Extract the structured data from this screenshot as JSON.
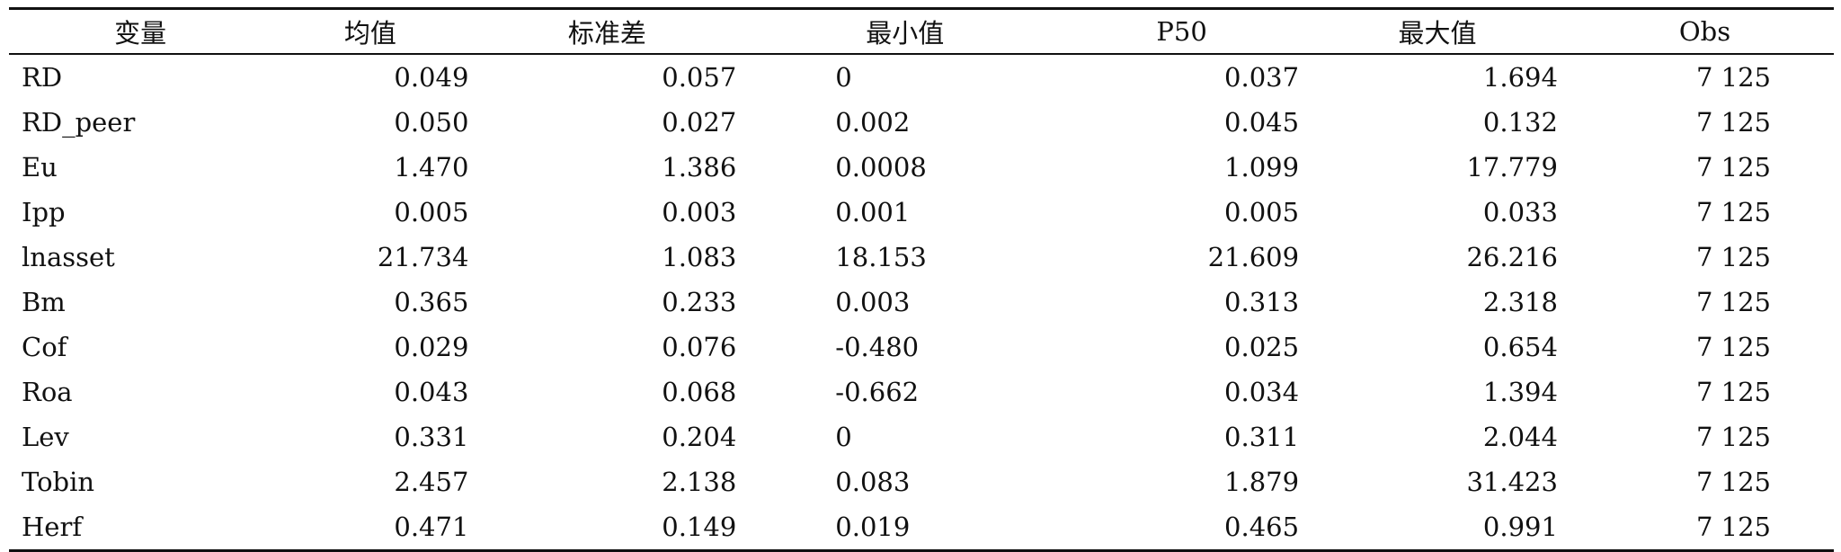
{
  "table": {
    "headers": [
      "变量",
      "均值",
      "标准差",
      "最小值",
      "P50",
      "最大值",
      "Obs"
    ],
    "rows": [
      [
        "RD",
        "0.049",
        "0.057",
        "0",
        "0.037",
        "1.694",
        "7 125"
      ],
      [
        "RD_peer",
        "0.050",
        "0.027",
        "0.002",
        "0.045",
        "0.132",
        "7 125"
      ],
      [
        "Eu",
        "1.470",
        "1.386",
        "0.0008",
        "1.099",
        "17.779",
        "7 125"
      ],
      [
        "Ipp",
        "0.005",
        "0.003",
        "0.001",
        "0.005",
        "0.033",
        "7 125"
      ],
      [
        "lnasset",
        "21.734",
        "1.083",
        "18.153",
        "21.609",
        "26.216",
        "7 125"
      ],
      [
        "Bm",
        "0.365",
        "0.233",
        "0.003",
        "0.313",
        "2.318",
        "7 125"
      ],
      [
        "Cof",
        "0.029",
        "0.076",
        "-0.480",
        "0.025",
        "0.654",
        "7 125"
      ],
      [
        "Roa",
        "0.043",
        "0.068",
        "-0.662",
        "0.034",
        "1.394",
        "7 125"
      ],
      [
        "Lev",
        "0.331",
        "0.204",
        "0",
        "0.311",
        "2.044",
        "7 125"
      ],
      [
        "Tobin",
        "2.457",
        "2.138",
        "0.083",
        "1.879",
        "31.423",
        "7 125"
      ],
      [
        "Herf",
        "0.471",
        "0.149",
        "0.019",
        "0.465",
        "0.991",
        "7 125"
      ]
    ]
  }
}
